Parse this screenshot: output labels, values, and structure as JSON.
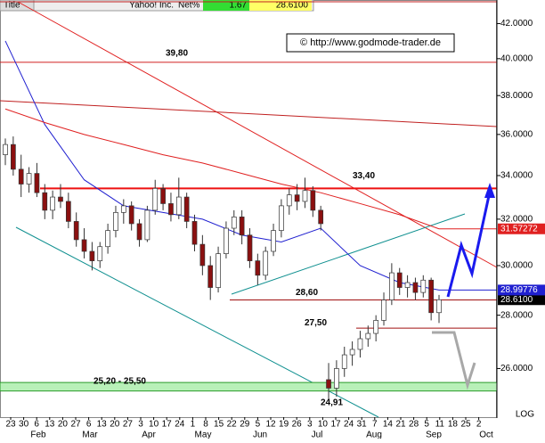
{
  "chart_data": {
    "type": "candlestick",
    "header": {
      "title": "Title",
      "name": "Yahoo! Inc.",
      "net_label": "Net%",
      "net_value": 1.67,
      "last": "28.6100"
    },
    "copyright": "© http://www.godmode-trader.de",
    "log_scale": true,
    "grid": false,
    "scale_label": "LOG",
    "ylim": [
      24.3,
      43.4
    ],
    "yticks": [
      {
        "value": 42,
        "label": "42.0000"
      },
      {
        "value": 40,
        "label": "40.0000"
      },
      {
        "value": 38,
        "label": "38.0000"
      },
      {
        "value": 36,
        "label": "36.0000"
      },
      {
        "value": 34,
        "label": "34.0000"
      },
      {
        "value": 32,
        "label": "32.0000"
      },
      {
        "value": 30,
        "label": "30.0000"
      },
      {
        "value": 28,
        "label": "28.0000"
      },
      {
        "value": 26,
        "label": "26.0000"
      }
    ],
    "x_day_labels": [
      "23",
      "30",
      "6",
      "13",
      "20",
      "27",
      "6",
      "13",
      "20",
      "27",
      "3",
      "10",
      "17",
      "24",
      "1",
      "8",
      "15",
      "22",
      "29",
      "5",
      "12",
      "19",
      "26",
      "3",
      "10",
      "17",
      "24",
      "31",
      "7",
      "14",
      "21",
      "28",
      "5",
      "11",
      "18",
      "25",
      "2"
    ],
    "x_month_labels": [
      "Feb",
      "Mar",
      "Apr",
      "May",
      "Jun",
      "Jul",
      "Aug",
      "Sep",
      "Oct"
    ],
    "candles": [
      [
        35.0,
        35.8,
        34.5,
        35.5
      ],
      [
        35.5,
        35.9,
        34.0,
        34.3
      ],
      [
        34.3,
        35.0,
        33.0,
        33.6
      ],
      [
        33.6,
        34.4,
        33.2,
        34.1
      ],
      [
        34.1,
        34.6,
        33.0,
        33.2
      ],
      [
        33.2,
        33.6,
        32.0,
        32.4
      ],
      [
        32.4,
        33.3,
        32.0,
        33.0
      ],
      [
        33.0,
        33.6,
        32.5,
        32.8
      ],
      [
        32.8,
        33.2,
        31.6,
        31.9
      ],
      [
        31.9,
        32.3,
        30.8,
        31.1
      ],
      [
        31.1,
        31.6,
        30.3,
        30.6
      ],
      [
        30.6,
        31.0,
        29.8,
        30.2
      ],
      [
        30.2,
        31.0,
        29.9,
        30.8
      ],
      [
        30.8,
        31.8,
        30.5,
        31.5
      ],
      [
        31.5,
        32.6,
        31.2,
        32.3
      ],
      [
        32.3,
        32.9,
        31.8,
        32.6
      ],
      [
        32.6,
        32.8,
        31.5,
        31.8
      ],
      [
        31.8,
        32.0,
        30.8,
        31.1
      ],
      [
        31.1,
        32.6,
        31.0,
        32.4
      ],
      [
        32.4,
        33.8,
        32.2,
        33.4
      ],
      [
        33.4,
        33.6,
        32.4,
        32.7
      ],
      [
        32.7,
        33.2,
        31.9,
        32.2
      ],
      [
        32.2,
        33.9,
        32.0,
        33.0
      ],
      [
        33.0,
        33.2,
        31.6,
        31.9
      ],
      [
        31.9,
        32.2,
        30.6,
        30.9
      ],
      [
        30.9,
        31.3,
        29.6,
        30.0
      ],
      [
        30.0,
        30.4,
        28.6,
        29.1
      ],
      [
        29.1,
        30.8,
        28.9,
        30.5
      ],
      [
        30.5,
        31.9,
        30.3,
        31.6
      ],
      [
        31.6,
        32.4,
        31.3,
        32.1
      ],
      [
        32.1,
        32.4,
        30.9,
        31.3
      ],
      [
        31.3,
        31.6,
        29.9,
        30.2
      ],
      [
        30.2,
        30.5,
        29.2,
        29.6
      ],
      [
        29.6,
        30.8,
        29.4,
        30.6
      ],
      [
        30.6,
        31.8,
        30.4,
        31.5
      ],
      [
        31.5,
        32.9,
        31.2,
        32.6
      ],
      [
        32.6,
        33.4,
        32.2,
        33.1
      ],
      [
        33.1,
        33.6,
        32.4,
        32.8
      ],
      [
        32.8,
        33.9,
        32.5,
        33.3
      ],
      [
        33.3,
        33.5,
        32.1,
        32.4
      ],
      [
        32.4,
        32.6,
        31.5,
        31.8
      ],
      [
        25.6,
        26.2,
        24.91,
        25.3
      ],
      [
        25.3,
        26.3,
        25.0,
        26.0
      ],
      [
        26.0,
        26.8,
        25.7,
        26.5
      ],
      [
        26.5,
        27.0,
        26.1,
        26.7
      ],
      [
        26.7,
        27.4,
        26.4,
        27.1
      ],
      [
        27.1,
        27.6,
        26.8,
        27.3
      ],
      [
        27.3,
        28.0,
        27.0,
        27.8
      ],
      [
        27.8,
        28.9,
        27.6,
        28.6
      ],
      [
        28.6,
        30.1,
        28.4,
        29.7
      ],
      [
        29.7,
        29.9,
        28.8,
        29.1
      ],
      [
        29.1,
        29.6,
        28.7,
        29.3
      ],
      [
        29.3,
        29.5,
        28.6,
        28.9
      ],
      [
        28.9,
        29.6,
        28.7,
        29.4
      ],
      [
        29.4,
        29.5,
        27.8,
        28.1
      ],
      [
        28.1,
        28.8,
        27.7,
        28.61
      ]
    ],
    "last_label": "28.6100",
    "series": [
      {
        "color": "#2020d0",
        "values": [
          41.0,
          36.5,
          33.8,
          32.6,
          32.3,
          32.0,
          31.3,
          31.0,
          31.6,
          30.0,
          29.3,
          28.99776
        ],
        "end_label": "28.99776"
      },
      {
        "color": "#e02020",
        "values": [
          37.3,
          36.6,
          36.0,
          35.5,
          35.0,
          34.6,
          34.1,
          33.6,
          33.2,
          32.7,
          32.2,
          31.57272
        ],
        "end_label": "31.57272"
      }
    ],
    "levels": [
      {
        "value": 39.8,
        "label": "39,80"
      },
      {
        "value": 33.4,
        "label": "33,40"
      },
      {
        "value": 28.6,
        "label": "28,60"
      },
      {
        "value": 27.5,
        "label": "27,50"
      }
    ],
    "band": {
      "low": 25.2,
      "high": 25.5,
      "label": "25,20 - 25,50"
    },
    "low_note": {
      "value": 24.91,
      "label": "24,91"
    }
  }
}
